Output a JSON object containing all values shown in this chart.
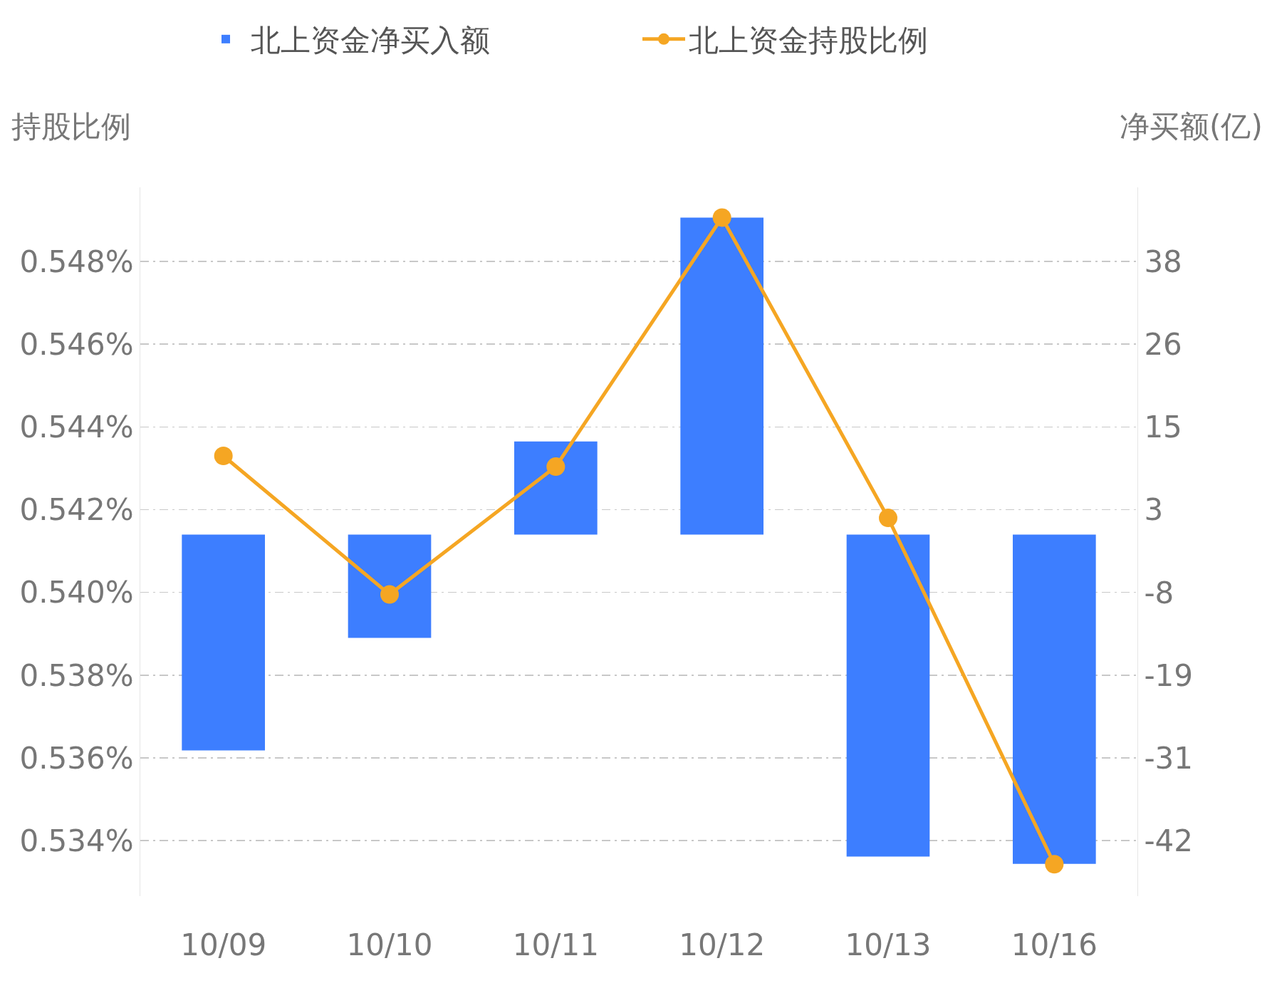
{
  "chart_data": {
    "type": "bar",
    "categories": [
      "10/09",
      "10/10",
      "10/11",
      "10/12",
      "10/13",
      "10/16"
    ],
    "series": [
      {
        "name": "北上资金持股比例",
        "type": "line",
        "color": "#f5a623",
        "values": [
          0.5433,
          0.53995,
          0.54304,
          0.54906,
          0.5418,
          0.53343
        ]
      },
      {
        "name": "北上资金净买入额",
        "axis": "y2",
        "color": "#3d7eff",
        "values": [
          -29.9,
          -14.3,
          12.9,
          43.9,
          -44.6,
          -45.6
        ]
      }
    ],
    "ylabel": "持股比例",
    "y2label": "净买额(亿)",
    "ylim": [
      0.53266,
      0.54979
    ],
    "yticks": [
      {
        "value": 0.534,
        "label": "0.534%"
      },
      {
        "value": 0.536,
        "label": "0.536%"
      },
      {
        "value": 0.538,
        "label": "0.538%"
      },
      {
        "value": 0.54,
        "label": "0.540%"
      },
      {
        "value": 0.542,
        "label": "0.542%"
      },
      {
        "value": 0.544,
        "label": "0.544%"
      },
      {
        "value": 0.546,
        "label": "0.546%"
      },
      {
        "value": 0.548,
        "label": "0.548%"
      }
    ],
    "y2lim": [
      -50.07,
      48.1
    ],
    "y2ticks": [
      {
        "value": -42.4,
        "label": "-42"
      },
      {
        "value": -30.94,
        "label": "-31"
      },
      {
        "value": -19.48,
        "label": "-19"
      },
      {
        "value": -8.02,
        "label": "-8"
      },
      {
        "value": 3.44,
        "label": "3"
      },
      {
        "value": 14.9,
        "label": "15"
      },
      {
        "value": 26.36,
        "label": "26"
      },
      {
        "value": 37.82,
        "label": "38"
      }
    ],
    "grid": "y",
    "legend": "top",
    "marker": "circle",
    "line_style": "solid"
  }
}
